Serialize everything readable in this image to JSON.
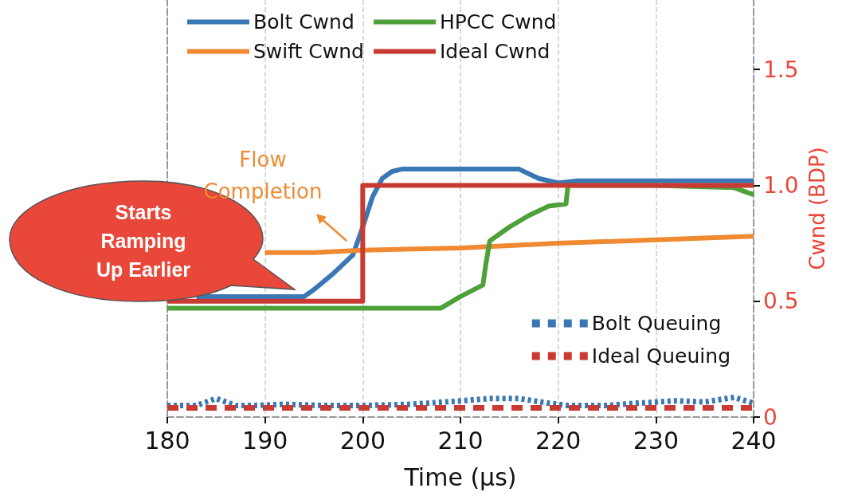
{
  "chart_data": {
    "type": "line",
    "xlabel": "Time (μs)",
    "y2label": "Cwnd (BDP)",
    "xlim": [
      180,
      240
    ],
    "xticks": [
      180,
      190,
      200,
      210,
      220,
      230,
      240
    ],
    "y2lim": [
      0,
      1.8
    ],
    "y2ticks": [
      0,
      0.5,
      {
        "value": 1,
        "label": "1.0"
      },
      1.5
    ],
    "grid": "x",
    "legend": "top",
    "marker": "none",
    "annotations": [
      "Flow\nCompletion",
      "Starts\nRamping\nUp Earlier"
    ],
    "series": [
      {
        "name": "Bolt Cwnd",
        "color": "#3a78b5",
        "axis": "y2",
        "line_style": "solid",
        "x": [
          183,
          186,
          188,
          194,
          195,
          197,
          199,
          200,
          201,
          202,
          203,
          204,
          210,
          216,
          217,
          218,
          220,
          222,
          230,
          240
        ],
        "values": [
          0.52,
          0.52,
          0.52,
          0.52,
          0.55,
          0.62,
          0.7,
          0.82,
          0.95,
          1.03,
          1.06,
          1.07,
          1.07,
          1.07,
          1.05,
          1.03,
          1.01,
          1.02,
          1.02,
          1.02
        ]
      },
      {
        "name": "Swift Cwnd",
        "color": "#ef8a32",
        "axis": "y2",
        "line_style": "solid",
        "x": [
          190,
          195,
          200,
          210,
          220,
          230,
          240
        ],
        "values": [
          0.71,
          0.71,
          0.72,
          0.73,
          0.75,
          0.765,
          0.78
        ]
      },
      {
        "name": "HPCC Cwnd",
        "color": "#4ea03a",
        "axis": "y2",
        "line_style": "solid",
        "x": [
          180,
          190,
          200,
          208,
          210,
          212.3,
          212.6,
          213,
          215,
          217,
          219,
          220.8,
          221,
          230,
          238,
          240
        ],
        "values": [
          0.47,
          0.47,
          0.47,
          0.47,
          0.52,
          0.57,
          0.66,
          0.76,
          0.82,
          0.87,
          0.91,
          0.92,
          1.0,
          1.0,
          0.99,
          0.96
        ]
      },
      {
        "name": "Ideal Cwnd",
        "color": "#c83a32",
        "axis": "y2",
        "line_style": "solid",
        "x": [
          180,
          200,
          200,
          240
        ],
        "values": [
          0.5,
          0.5,
          1.0,
          1.0
        ]
      },
      {
        "name": "Bolt Queuing",
        "color": "#3a78b5",
        "axis": "y2",
        "line_style": "dotted",
        "x": [
          180,
          183,
          185,
          187,
          189,
          192,
          196,
          200,
          205,
          210,
          213,
          216,
          219,
          221,
          225,
          228,
          232,
          235,
          238,
          240
        ],
        "values": [
          0.05,
          0.05,
          0.08,
          0.05,
          0.05,
          0.055,
          0.05,
          0.05,
          0.055,
          0.07,
          0.08,
          0.08,
          0.06,
          0.05,
          0.05,
          0.06,
          0.07,
          0.065,
          0.085,
          0.06
        ]
      },
      {
        "name": "Ideal Queuing",
        "color": "#c83a32",
        "axis": "y2",
        "line_style": "dashed",
        "x": [
          180,
          240
        ],
        "values": [
          0.04,
          0.04
        ]
      }
    ]
  }
}
